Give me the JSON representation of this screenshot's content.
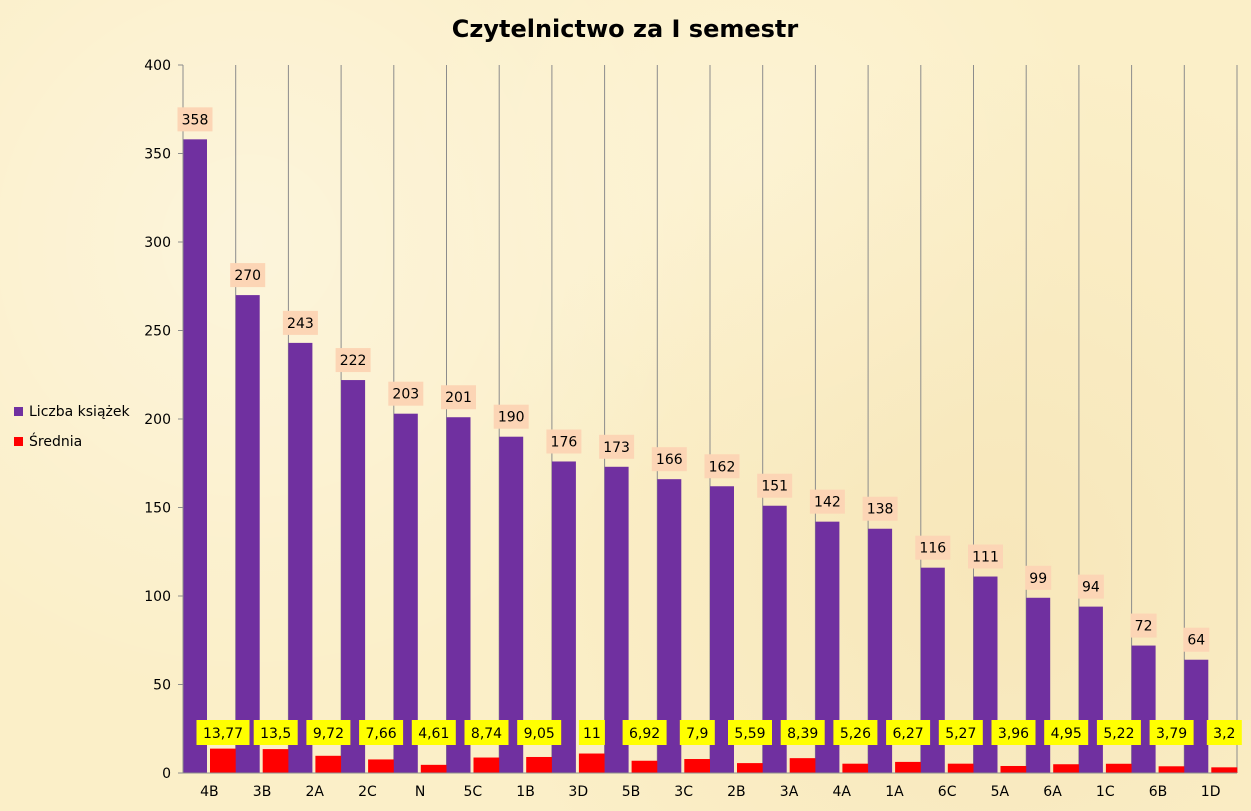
{
  "chart_data": {
    "type": "bar",
    "title": "Czytelnictwo za I semestr",
    "xlabel": "",
    "ylabel": "",
    "ylim": [
      0,
      400
    ],
    "yticks": [
      0,
      50,
      100,
      150,
      200,
      250,
      300,
      350,
      400
    ],
    "grid": "vertical lines between categories",
    "legend_position": "left",
    "categories": [
      "4B",
      "3B",
      "2A",
      "2C",
      "N",
      "5C",
      "1B",
      "3D",
      "5B",
      "3C",
      "2B",
      "3A",
      "4A",
      "1A",
      "6C",
      "5A",
      "6A",
      "1C",
      "6B",
      "1D"
    ],
    "series": [
      {
        "name": "Liczba książek",
        "color": "#7030a0",
        "label_bg": "#fcd5b5",
        "values": [
          358,
          270,
          243,
          222,
          203,
          201,
          190,
          176,
          173,
          166,
          162,
          151,
          142,
          138,
          116,
          111,
          99,
          94,
          72,
          64
        ],
        "labels": [
          "358",
          "270",
          "243",
          "222",
          "203",
          "201",
          "190",
          "176",
          "173",
          "166",
          "162",
          "151",
          "142",
          "138",
          "116",
          "111",
          "99",
          "94",
          "72",
          "64"
        ]
      },
      {
        "name": "Średnia",
        "color": "#ff0000",
        "label_bg": "#ffff00",
        "values": [
          13.77,
          13.5,
          9.72,
          7.66,
          4.61,
          8.74,
          9.05,
          11,
          6.92,
          7.9,
          5.59,
          8.39,
          5.26,
          6.27,
          5.27,
          3.96,
          4.95,
          5.22,
          3.79,
          3.2
        ],
        "labels": [
          "13,77",
          "13,5",
          "9,72",
          "7,66",
          "4,61",
          "8,74",
          "9,05",
          "11",
          "6,92",
          "7,9",
          "5,59",
          "8,39",
          "5,26",
          "6,27",
          "5,27",
          "3,96",
          "4,95",
          "5,22",
          "3,79",
          "3,2"
        ]
      }
    ]
  }
}
